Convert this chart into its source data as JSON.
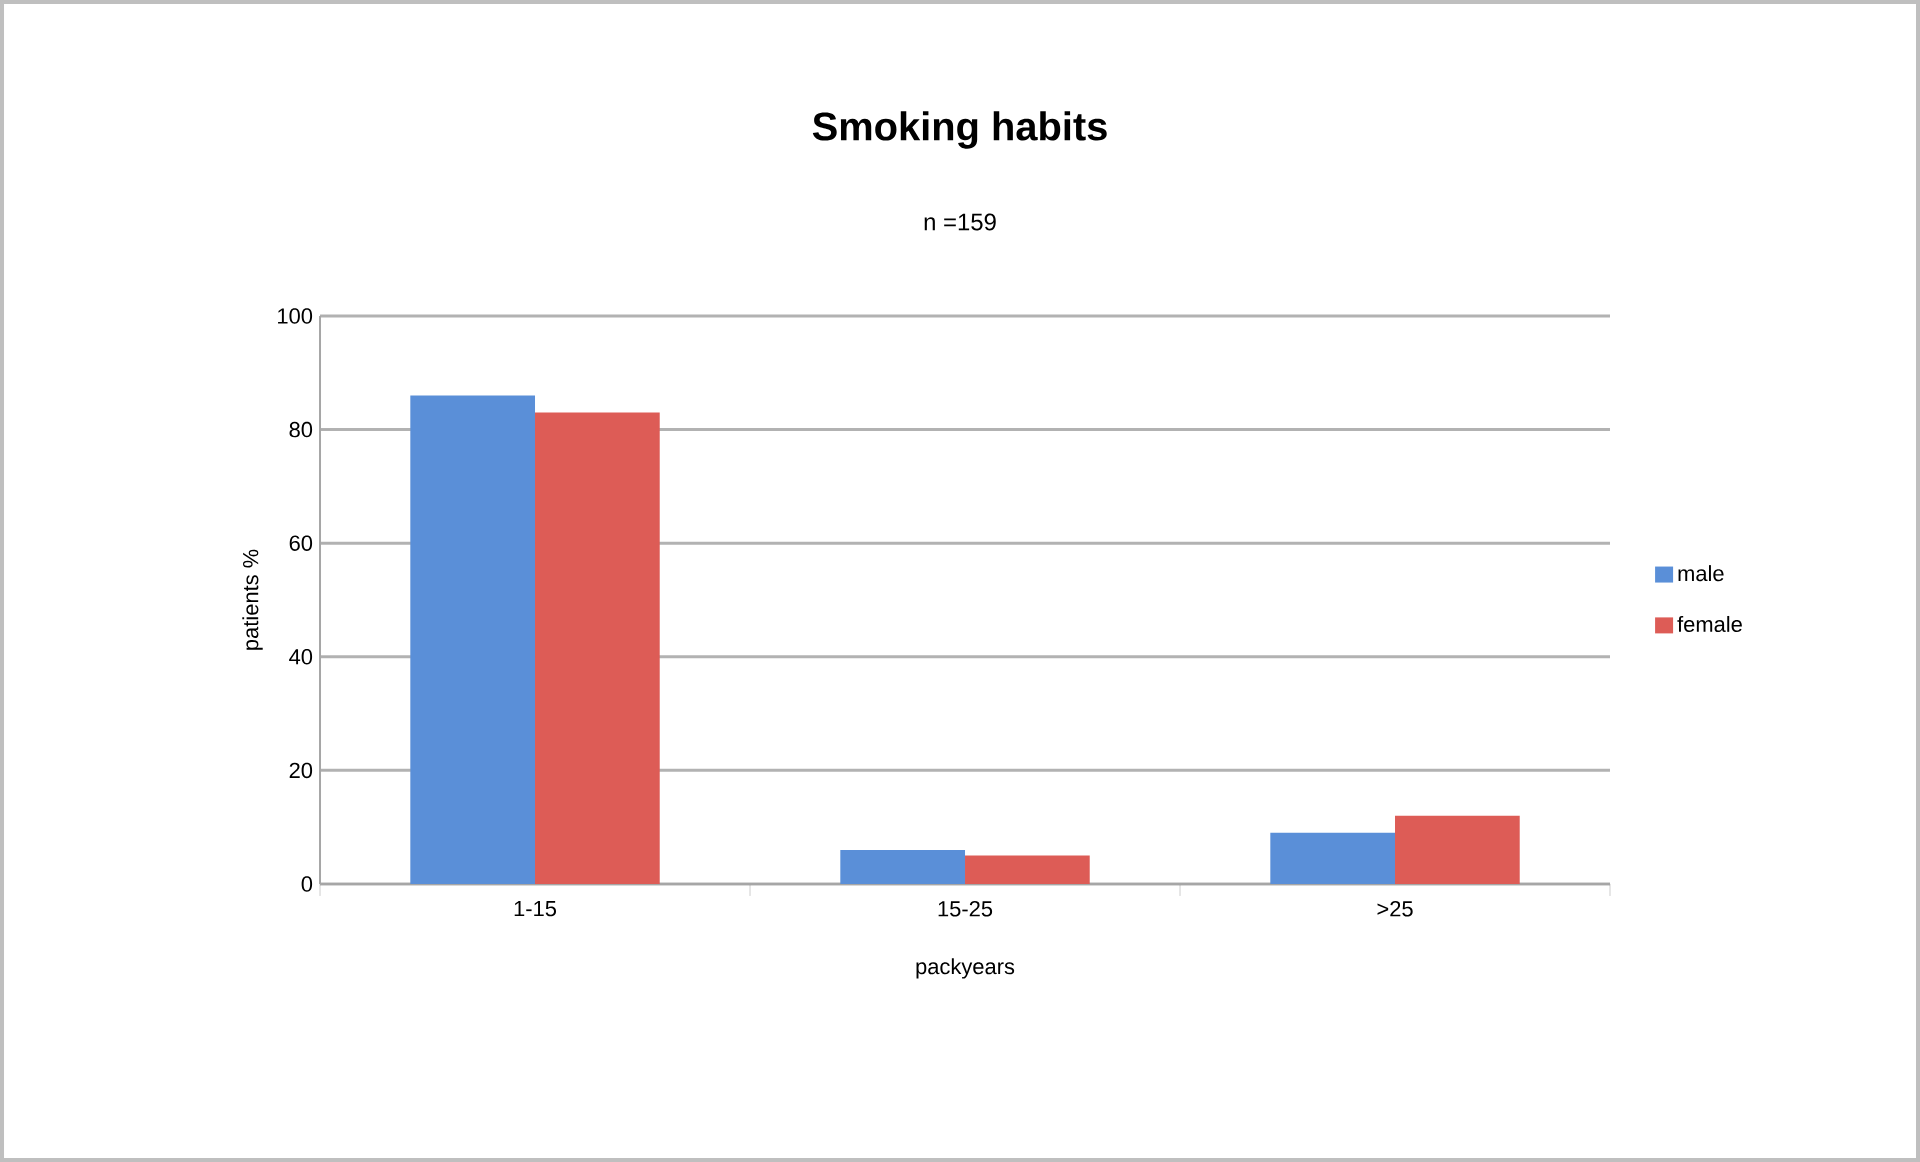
{
  "chart_data": {
    "type": "bar",
    "title": "Smoking habits",
    "subtitle": "n =159",
    "xlabel": "packyears",
    "ylabel": "patients %",
    "categories": [
      "1-15",
      "15-25",
      ">25"
    ],
    "series": [
      {
        "name": "male",
        "color": "#5a8fd8",
        "values": [
          86,
          6,
          9
        ]
      },
      {
        "name": "female",
        "color": "#dd5c56",
        "values": [
          83,
          5,
          12
        ]
      }
    ],
    "ylim": [
      0,
      100
    ],
    "yticks": [
      0,
      20,
      40,
      60,
      80,
      100
    ],
    "grid": "y",
    "legend": "right"
  }
}
